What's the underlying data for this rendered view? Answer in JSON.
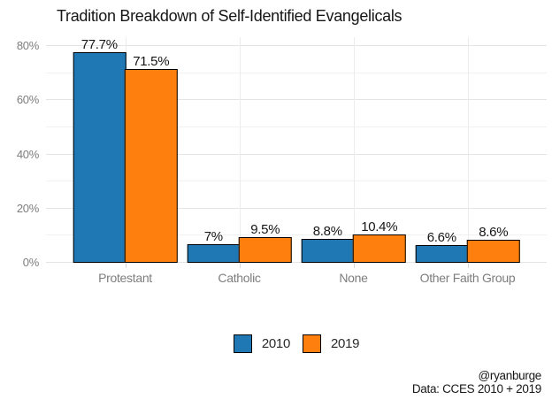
{
  "title": "Tradition Breakdown of Self-Identified Evangelicals",
  "footer": {
    "handle": "@ryanburge",
    "source": "Data: CCES 2010 + 2019"
  },
  "legend": {
    "items": [
      {
        "label": "2010",
        "color": "#1f77b4"
      },
      {
        "label": "2019",
        "color": "#ff7f0e"
      }
    ]
  },
  "chart_data": {
    "type": "bar",
    "title": "Tradition Breakdown of Self-Identified Evangelicals",
    "categories": [
      "Protestant",
      "Catholic",
      "None",
      "Other Faith Group"
    ],
    "series": [
      {
        "name": "2010",
        "color": "#1f77b4",
        "values": [
          77.7,
          7,
          8.8,
          6.6
        ],
        "labels": [
          "77.7%",
          "7%",
          "8.8%",
          "6.6%"
        ]
      },
      {
        "name": "2019",
        "color": "#ff7f0e",
        "values": [
          71.5,
          9.5,
          10.4,
          8.6
        ],
        "labels": [
          "71.5%",
          "9.5%",
          "10.4%",
          "8.6%"
        ]
      }
    ],
    "xlabel": "",
    "ylabel": "",
    "ylim": [
      0,
      80
    ],
    "yticks": {
      "major": [
        0,
        20,
        40,
        60,
        80
      ],
      "minor": [
        10,
        30,
        50,
        70
      ],
      "major_labels": [
        "0%",
        "20%",
        "40%",
        "60%",
        "80%"
      ]
    },
    "grid": true,
    "legend_position": "bottom"
  },
  "colors": {
    "background": "#ffffff",
    "grid_major": "#e4e4e4",
    "grid_minor": "#f1f1f1",
    "axis_text": "#7d7d7d",
    "bar_border": "#000000",
    "value_text": "#161616"
  }
}
